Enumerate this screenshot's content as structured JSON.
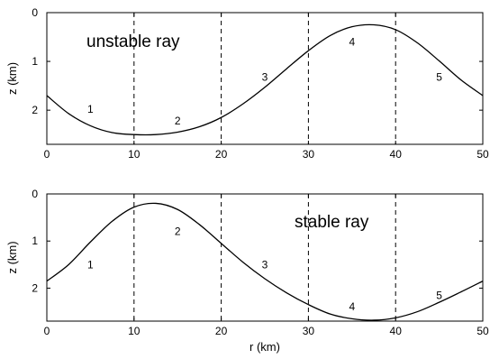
{
  "chart_data": [
    {
      "type": "line",
      "annotation": "unstable ray",
      "xlabel": "",
      "ylabel": "z (km)",
      "xlim": [
        0,
        50
      ],
      "ylim": [
        0,
        2.7
      ],
      "y_inverted": true,
      "xticks": [
        "0",
        "10",
        "20",
        "30",
        "40",
        "50"
      ],
      "yticks": [
        "0",
        "1",
        "2"
      ],
      "xtick_values": [
        0,
        10,
        20,
        30,
        40,
        50
      ],
      "ytick_values": [
        0,
        1,
        2
      ],
      "dashed_x": [
        10,
        20,
        30,
        40
      ],
      "region_labels": [
        {
          "text": "1",
          "x": 5,
          "z": 1.98
        },
        {
          "text": "2",
          "x": 15,
          "z": 2.22
        },
        {
          "text": "3",
          "x": 25,
          "z": 1.32
        },
        {
          "text": "4",
          "x": 35,
          "z": 0.6
        },
        {
          "text": "5",
          "x": 45,
          "z": 1.32
        }
      ],
      "series": [
        {
          "x": [
            0,
            2.5,
            5,
            7.5,
            10,
            12.5,
            15,
            17.5,
            20,
            22.5,
            25,
            27.5,
            30,
            32.5,
            35,
            37.5,
            40,
            42.5,
            45,
            47.5,
            50
          ],
          "values": [
            1.7,
            2.07,
            2.32,
            2.46,
            2.5,
            2.5,
            2.45,
            2.34,
            2.15,
            1.87,
            1.53,
            1.15,
            0.78,
            0.47,
            0.29,
            0.25,
            0.35,
            0.62,
            0.99,
            1.38,
            1.7
          ]
        }
      ]
    },
    {
      "type": "line",
      "annotation": "stable ray",
      "xlabel": "r (km)",
      "ylabel": "z (km)",
      "xlim": [
        0,
        50
      ],
      "ylim": [
        0,
        2.7
      ],
      "y_inverted": true,
      "xticks": [
        "0",
        "10",
        "20",
        "30",
        "40",
        "50"
      ],
      "yticks": [
        "0",
        "1",
        "2"
      ],
      "xtick_values": [
        0,
        10,
        20,
        30,
        40,
        50
      ],
      "ytick_values": [
        0,
        1,
        2
      ],
      "dashed_x": [
        10,
        20,
        30,
        40
      ],
      "region_labels": [
        {
          "text": "1",
          "x": 5,
          "z": 1.5
        },
        {
          "text": "2",
          "x": 15,
          "z": 0.79
        },
        {
          "text": "3",
          "x": 25,
          "z": 1.5
        },
        {
          "text": "4",
          "x": 35,
          "z": 2.39
        },
        {
          "text": "5",
          "x": 45,
          "z": 2.15
        }
      ],
      "series": [
        {
          "x": [
            0,
            2.5,
            5,
            7.5,
            10,
            12.5,
            15,
            17.5,
            20,
            22.5,
            25,
            27.5,
            30,
            32.5,
            35,
            37.5,
            40,
            42.5,
            45,
            47.5,
            50
          ],
          "values": [
            1.85,
            1.5,
            1.02,
            0.58,
            0.28,
            0.2,
            0.33,
            0.65,
            1.05,
            1.45,
            1.8,
            2.1,
            2.35,
            2.55,
            2.65,
            2.68,
            2.63,
            2.5,
            2.3,
            2.08,
            1.85
          ]
        }
      ]
    }
  ]
}
